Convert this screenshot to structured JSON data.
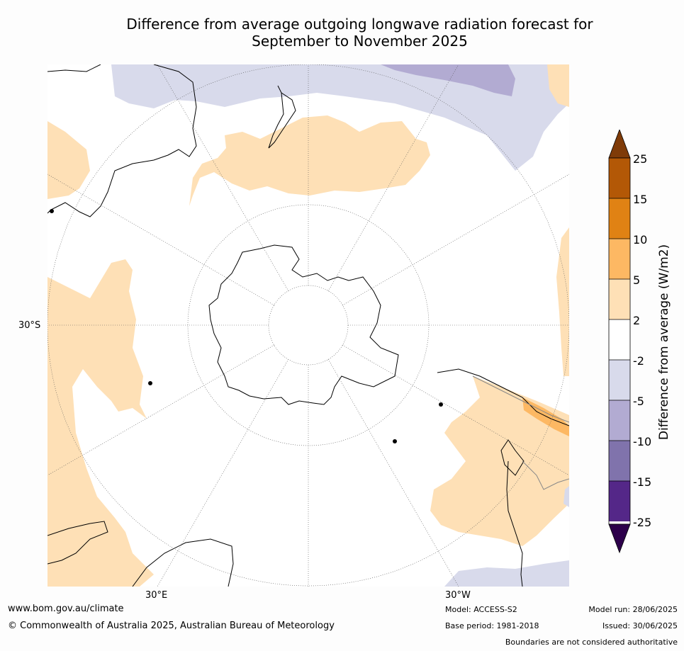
{
  "title": {
    "line1": "Difference from average outgoing longwave radiation forecast for",
    "line2": "September to November 2025"
  },
  "map": {
    "projection": "south-polar-stereographic",
    "labels": {
      "lat_30s": "30°S",
      "lon_30e": "30°E",
      "lon_30w": "30°W"
    }
  },
  "colorbar": {
    "label": "Difference from average (W/m2)",
    "ticks": [
      "25",
      "15",
      "10",
      "5",
      "2",
      "-2",
      "-5",
      "-10",
      "-15",
      "-25"
    ],
    "colors": {
      "above_25": "#7f3b08",
      "15_25": "#b35806",
      "10_15": "#e08214",
      "5_10": "#fdb863",
      "2_5": "#fee0b6",
      "neg2_2": "#ffffff",
      "neg5_neg2": "#d8daeb",
      "neg10_neg5": "#b2abd2",
      "neg15_neg10": "#8073ac",
      "neg25_neg15": "#542788",
      "below_neg25": "#2d004b"
    }
  },
  "footer": {
    "website": "www.bom.gov.au/climate",
    "copyright": "© Commonwealth of Australia 2025, Australian Bureau of Meteorology",
    "model": "Model: ACCESS-S2",
    "base_period": "Base period: 1981-2018",
    "model_run": "Model run: 28/06/2025",
    "issued": "Issued: 30/06/2025",
    "disclaimer": "Boundaries are not considered authoritative"
  }
}
